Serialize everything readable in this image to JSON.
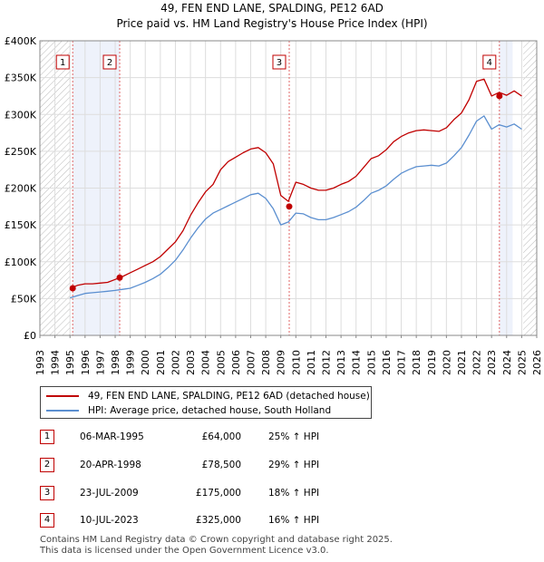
{
  "chart_data": {
    "type": "line",
    "title": "49, FEN END LANE, SPALDING, PE12 6AD",
    "subtitle": "Price paid vs. HM Land Registry's House Price Index (HPI)",
    "xlabel": "",
    "ylabel": "",
    "xlim": [
      1993,
      2026
    ],
    "ylim": [
      0,
      400000
    ],
    "x_ticks": [
      "1993",
      "1994",
      "1995",
      "1996",
      "1997",
      "1998",
      "1999",
      "2000",
      "2001",
      "2002",
      "2003",
      "2004",
      "2005",
      "2006",
      "2007",
      "2008",
      "2009",
      "2010",
      "2011",
      "2012",
      "2013",
      "2014",
      "2015",
      "2016",
      "2017",
      "2018",
      "2019",
      "2020",
      "2021",
      "2022",
      "2023",
      "2024",
      "2025",
      "2026"
    ],
    "y_ticks": [
      {
        "value": 0,
        "label": "£0"
      },
      {
        "value": 50000,
        "label": "£50K"
      },
      {
        "value": 100000,
        "label": "£100K"
      },
      {
        "value": 150000,
        "label": "£150K"
      },
      {
        "value": 200000,
        "label": "£200K"
      },
      {
        "value": 250000,
        "label": "£250K"
      },
      {
        "value": 300000,
        "label": "£300K"
      },
      {
        "value": 350000,
        "label": "£350K"
      },
      {
        "value": 400000,
        "label": "£400K"
      }
    ],
    "grid": true,
    "legend_position": "below",
    "x": [
      1995.0,
      1995.5,
      1996.0,
      1996.5,
      1997.0,
      1997.5,
      1998.0,
      1998.5,
      1999.0,
      1999.5,
      2000.0,
      2000.5,
      2001.0,
      2001.5,
      2002.0,
      2002.5,
      2003.0,
      2003.5,
      2004.0,
      2004.5,
      2005.0,
      2005.5,
      2006.0,
      2006.5,
      2007.0,
      2007.5,
      2008.0,
      2008.5,
      2009.0,
      2009.5,
      2010.0,
      2010.5,
      2011.0,
      2011.5,
      2012.0,
      2012.5,
      2013.0,
      2013.5,
      2014.0,
      2014.5,
      2015.0,
      2015.5,
      2016.0,
      2016.5,
      2017.0,
      2017.5,
      2018.0,
      2018.5,
      2019.0,
      2019.5,
      2020.0,
      2020.5,
      2021.0,
      2021.5,
      2022.0,
      2022.5,
      2023.0,
      2023.5,
      2024.0,
      2024.5,
      2025.0
    ],
    "series": [
      {
        "name": "49, FEN END LANE, SPALDING, PE12 6AD (detached house)",
        "color": "#c00000",
        "values": [
          64000,
          68000,
          70000,
          70000,
          71000,
          72000,
          76000,
          80000,
          85000,
          90000,
          95000,
          100000,
          107000,
          117000,
          127000,
          142000,
          163000,
          180000,
          195000,
          205000,
          225000,
          236000,
          242000,
          248000,
          253000,
          255000,
          248000,
          233000,
          190000,
          182000,
          208000,
          205000,
          200000,
          197000,
          197000,
          200000,
          205000,
          209000,
          216000,
          228000,
          240000,
          244000,
          252000,
          263000,
          270000,
          275000,
          278000,
          279000,
          278000,
          277000,
          282000,
          293000,
          302000,
          320000,
          345000,
          348000,
          325000,
          330000,
          326000,
          332000,
          325000
        ]
      },
      {
        "name": "HPI: Average price, detached house, South Holland",
        "color": "#5b8fd0",
        "values": [
          51000,
          54000,
          57000,
          58000,
          59000,
          60000,
          61000,
          62500,
          64000,
          68000,
          72000,
          77000,
          83000,
          92000,
          102000,
          116000,
          132000,
          146000,
          158000,
          166000,
          171000,
          176000,
          181000,
          186000,
          191000,
          193000,
          186000,
          172000,
          150000,
          154000,
          166000,
          165000,
          160000,
          157000,
          157000,
          160000,
          164000,
          168000,
          174000,
          183000,
          193000,
          197000,
          203000,
          212000,
          220000,
          225000,
          229000,
          230000,
          231000,
          230000,
          234000,
          244000,
          255000,
          272000,
          291000,
          298000,
          280000,
          286000,
          283000,
          287000,
          280000
        ]
      }
    ],
    "sales": [
      {
        "id": "1",
        "year": 1995.18,
        "price": 64000
      },
      {
        "id": "2",
        "year": 1998.3,
        "price": 78500
      },
      {
        "id": "3",
        "year": 2009.56,
        "price": 175000
      },
      {
        "id": "4",
        "year": 2023.52,
        "price": 325000
      }
    ]
  },
  "legend": {
    "property_label": "49, FEN END LANE, SPALDING, PE12 6AD (detached house)",
    "hpi_label": "HPI: Average price, detached house, South Holland"
  },
  "transactions": [
    {
      "id": "1",
      "date": "06-MAR-1995",
      "price": "£64,000",
      "hpi": "25% ↑ HPI"
    },
    {
      "id": "2",
      "date": "20-APR-1998",
      "price": "£78,500",
      "hpi": "29% ↑ HPI"
    },
    {
      "id": "3",
      "date": "23-JUL-2009",
      "price": "£175,000",
      "hpi": "18% ↑ HPI"
    },
    {
      "id": "4",
      "date": "10-JUL-2023",
      "price": "£325,000",
      "hpi": "16% ↑ HPI"
    }
  ],
  "footer": {
    "line1": "Contains HM Land Registry data © Crown copyright and database right 2025.",
    "line2": "This data is licensed under the Open Government Licence v3.0."
  }
}
